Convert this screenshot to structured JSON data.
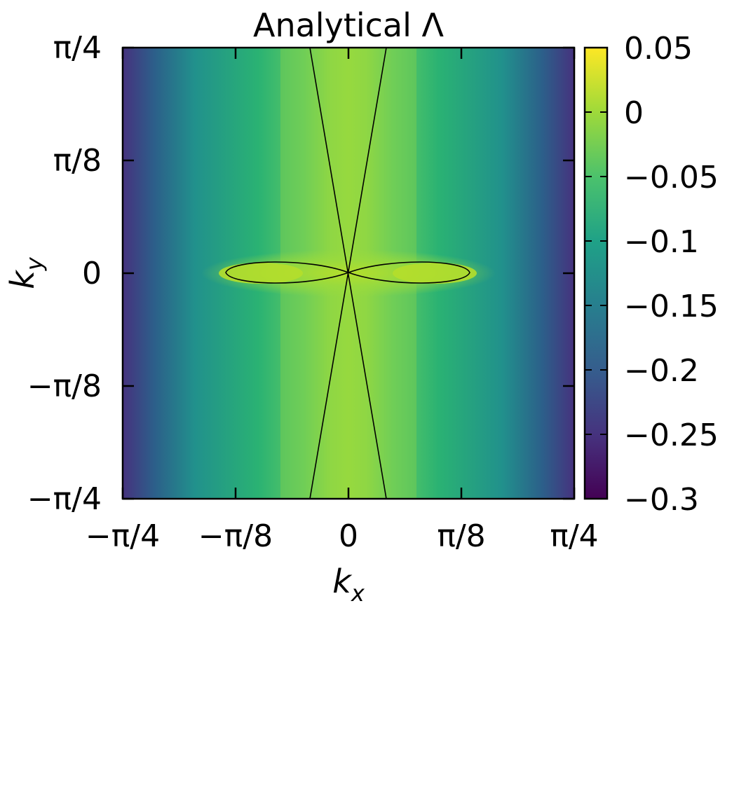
{
  "chart_data": {
    "type": "heatmap",
    "title": "Analytical Λ",
    "xlabel": "k_x",
    "ylabel": "k_y",
    "x_range": [
      -0.7853981634,
      0.7853981634
    ],
    "y_range": [
      -0.7853981634,
      0.7853981634
    ],
    "x_ticks": [
      {
        "value": -0.7853981634,
        "label": "−π/4"
      },
      {
        "value": -0.3926990817,
        "label": "−π/8"
      },
      {
        "value": 0,
        "label": "0"
      },
      {
        "value": 0.3926990817,
        "label": "π/8"
      },
      {
        "value": 0.7853981634,
        "label": "π/4"
      }
    ],
    "y_ticks": [
      {
        "value": 0.7853981634,
        "label": "π/4"
      },
      {
        "value": 0.3926990817,
        "label": "π/8"
      },
      {
        "value": 0,
        "label": "0"
      },
      {
        "value": -0.3926990817,
        "label": "−π/8"
      },
      {
        "value": -0.7853981634,
        "label": "−π/4"
      }
    ],
    "colorbar": {
      "range": [
        -0.3,
        0.05
      ],
      "colormap": "viridis",
      "ticks": [
        {
          "value": 0.05,
          "label": "0.05"
        },
        {
          "value": 0,
          "label": "0"
        },
        {
          "value": -0.05,
          "label": "−0.05"
        },
        {
          "value": -0.1,
          "label": "−0.1"
        },
        {
          "value": -0.15,
          "label": "−0.15"
        },
        {
          "value": -0.2,
          "label": "−0.2"
        },
        {
          "value": -0.25,
          "label": "−0.25"
        },
        {
          "value": -0.3,
          "label": "−0.3"
        }
      ]
    },
    "zero_contour": "figure-eight lobes along k_x axis (|k_x| up to ~0.43) plus two lines crossing the origin",
    "grid": false
  }
}
